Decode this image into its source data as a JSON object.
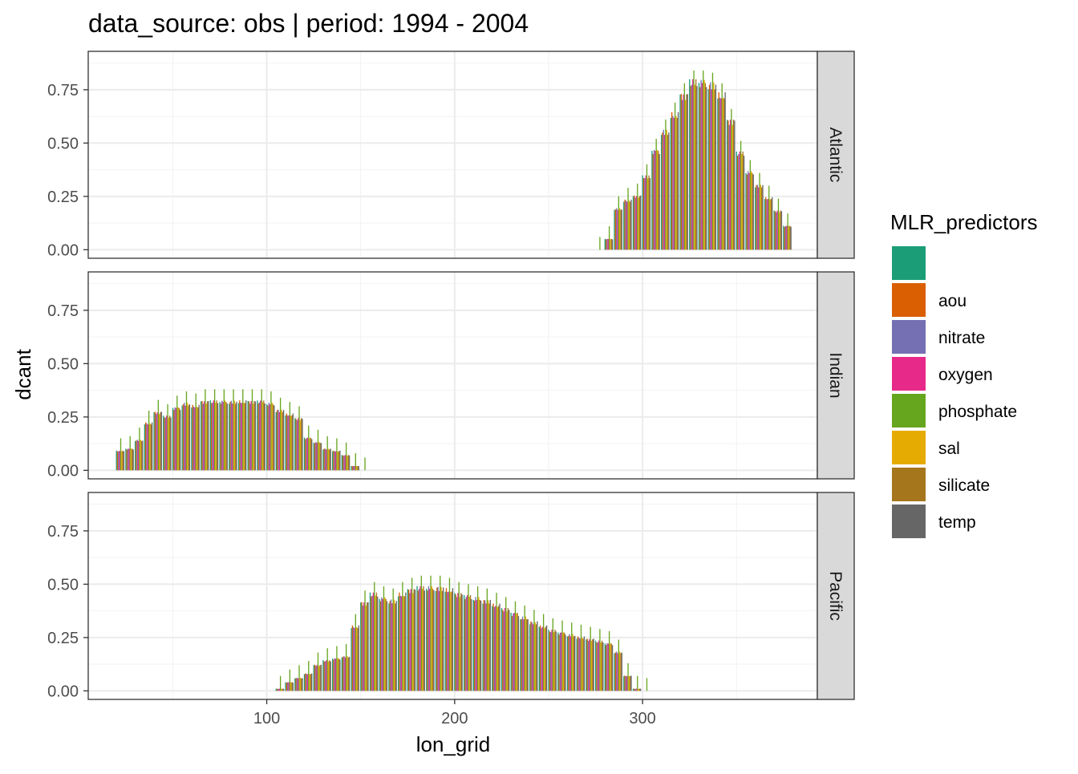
{
  "chart_data": {
    "type": "bar",
    "title": "data_source: obs | period: 1994 - 2004",
    "xlabel": "lon_grid",
    "ylabel": "dcant",
    "xlim": [
      5,
      393
    ],
    "ylim": [
      -0.04,
      0.93
    ],
    "x_ticks": [
      100,
      200,
      300
    ],
    "y_ticks": [
      0,
      0.25,
      0.5,
      0.75
    ],
    "y_tick_labels": [
      "0.00",
      "0.25",
      "0.50",
      "0.75"
    ],
    "grid": true,
    "facets": [
      "Atlantic",
      "Indian",
      "Pacific"
    ],
    "legend": {
      "title": "MLR_predictors",
      "position": "right",
      "entries": [
        {
          "label": "",
          "color": "#1B9E77"
        },
        {
          "label": "aou",
          "color": "#D95F02"
        },
        {
          "label": "nitrate",
          "color": "#7570B3"
        },
        {
          "label": "oxygen",
          "color": "#E7298A"
        },
        {
          "label": "phosphate",
          "color": "#66A61E"
        },
        {
          "label": "sal",
          "color": "#E6AB02"
        },
        {
          "label": "silicate",
          "color": "#A6761D"
        },
        {
          "label": "temp",
          "color": "#666666"
        }
      ]
    },
    "bin_width": 4.5,
    "phosphate_bump": 0.06,
    "panels": [
      {
        "name": "Atlantic",
        "x": [
          277,
          282,
          287,
          292,
          297,
          302,
          307,
          312,
          317,
          322,
          327,
          332,
          337,
          342,
          347,
          352,
          357,
          362,
          367,
          372,
          377
        ],
        "y": [
          0.0,
          0.05,
          0.19,
          0.23,
          0.25,
          0.34,
          0.46,
          0.55,
          0.63,
          0.72,
          0.78,
          0.78,
          0.77,
          0.72,
          0.6,
          0.45,
          0.36,
          0.3,
          0.24,
          0.18,
          0.11
        ]
      },
      {
        "name": "Indian",
        "x": [
          22,
          27,
          32,
          37,
          42,
          47,
          52,
          57,
          62,
          67,
          72,
          77,
          82,
          87,
          92,
          97,
          102,
          107,
          112,
          117,
          122,
          127,
          132,
          137,
          142,
          147,
          152
        ],
        "y": [
          0.09,
          0.1,
          0.14,
          0.22,
          0.27,
          0.25,
          0.29,
          0.31,
          0.3,
          0.32,
          0.32,
          0.32,
          0.32,
          0.32,
          0.32,
          0.32,
          0.31,
          0.28,
          0.26,
          0.24,
          0.15,
          0.13,
          0.1,
          0.09,
          0.07,
          0.02,
          0.0
        ]
      },
      {
        "name": "Pacific",
        "x": [
          107,
          112,
          117,
          122,
          127,
          132,
          137,
          142,
          147,
          152,
          157,
          162,
          167,
          172,
          177,
          182,
          187,
          192,
          197,
          202,
          207,
          212,
          217,
          222,
          227,
          232,
          237,
          242,
          247,
          252,
          257,
          262,
          267,
          272,
          277,
          282,
          287,
          292,
          297,
          302
        ],
        "y": [
          0.01,
          0.04,
          0.06,
          0.08,
          0.12,
          0.14,
          0.15,
          0.16,
          0.3,
          0.41,
          0.45,
          0.43,
          0.42,
          0.45,
          0.47,
          0.48,
          0.48,
          0.48,
          0.47,
          0.45,
          0.44,
          0.43,
          0.42,
          0.4,
          0.38,
          0.36,
          0.34,
          0.32,
          0.3,
          0.28,
          0.27,
          0.26,
          0.25,
          0.24,
          0.23,
          0.22,
          0.18,
          0.07,
          0.01,
          0.0
        ]
      }
    ]
  }
}
